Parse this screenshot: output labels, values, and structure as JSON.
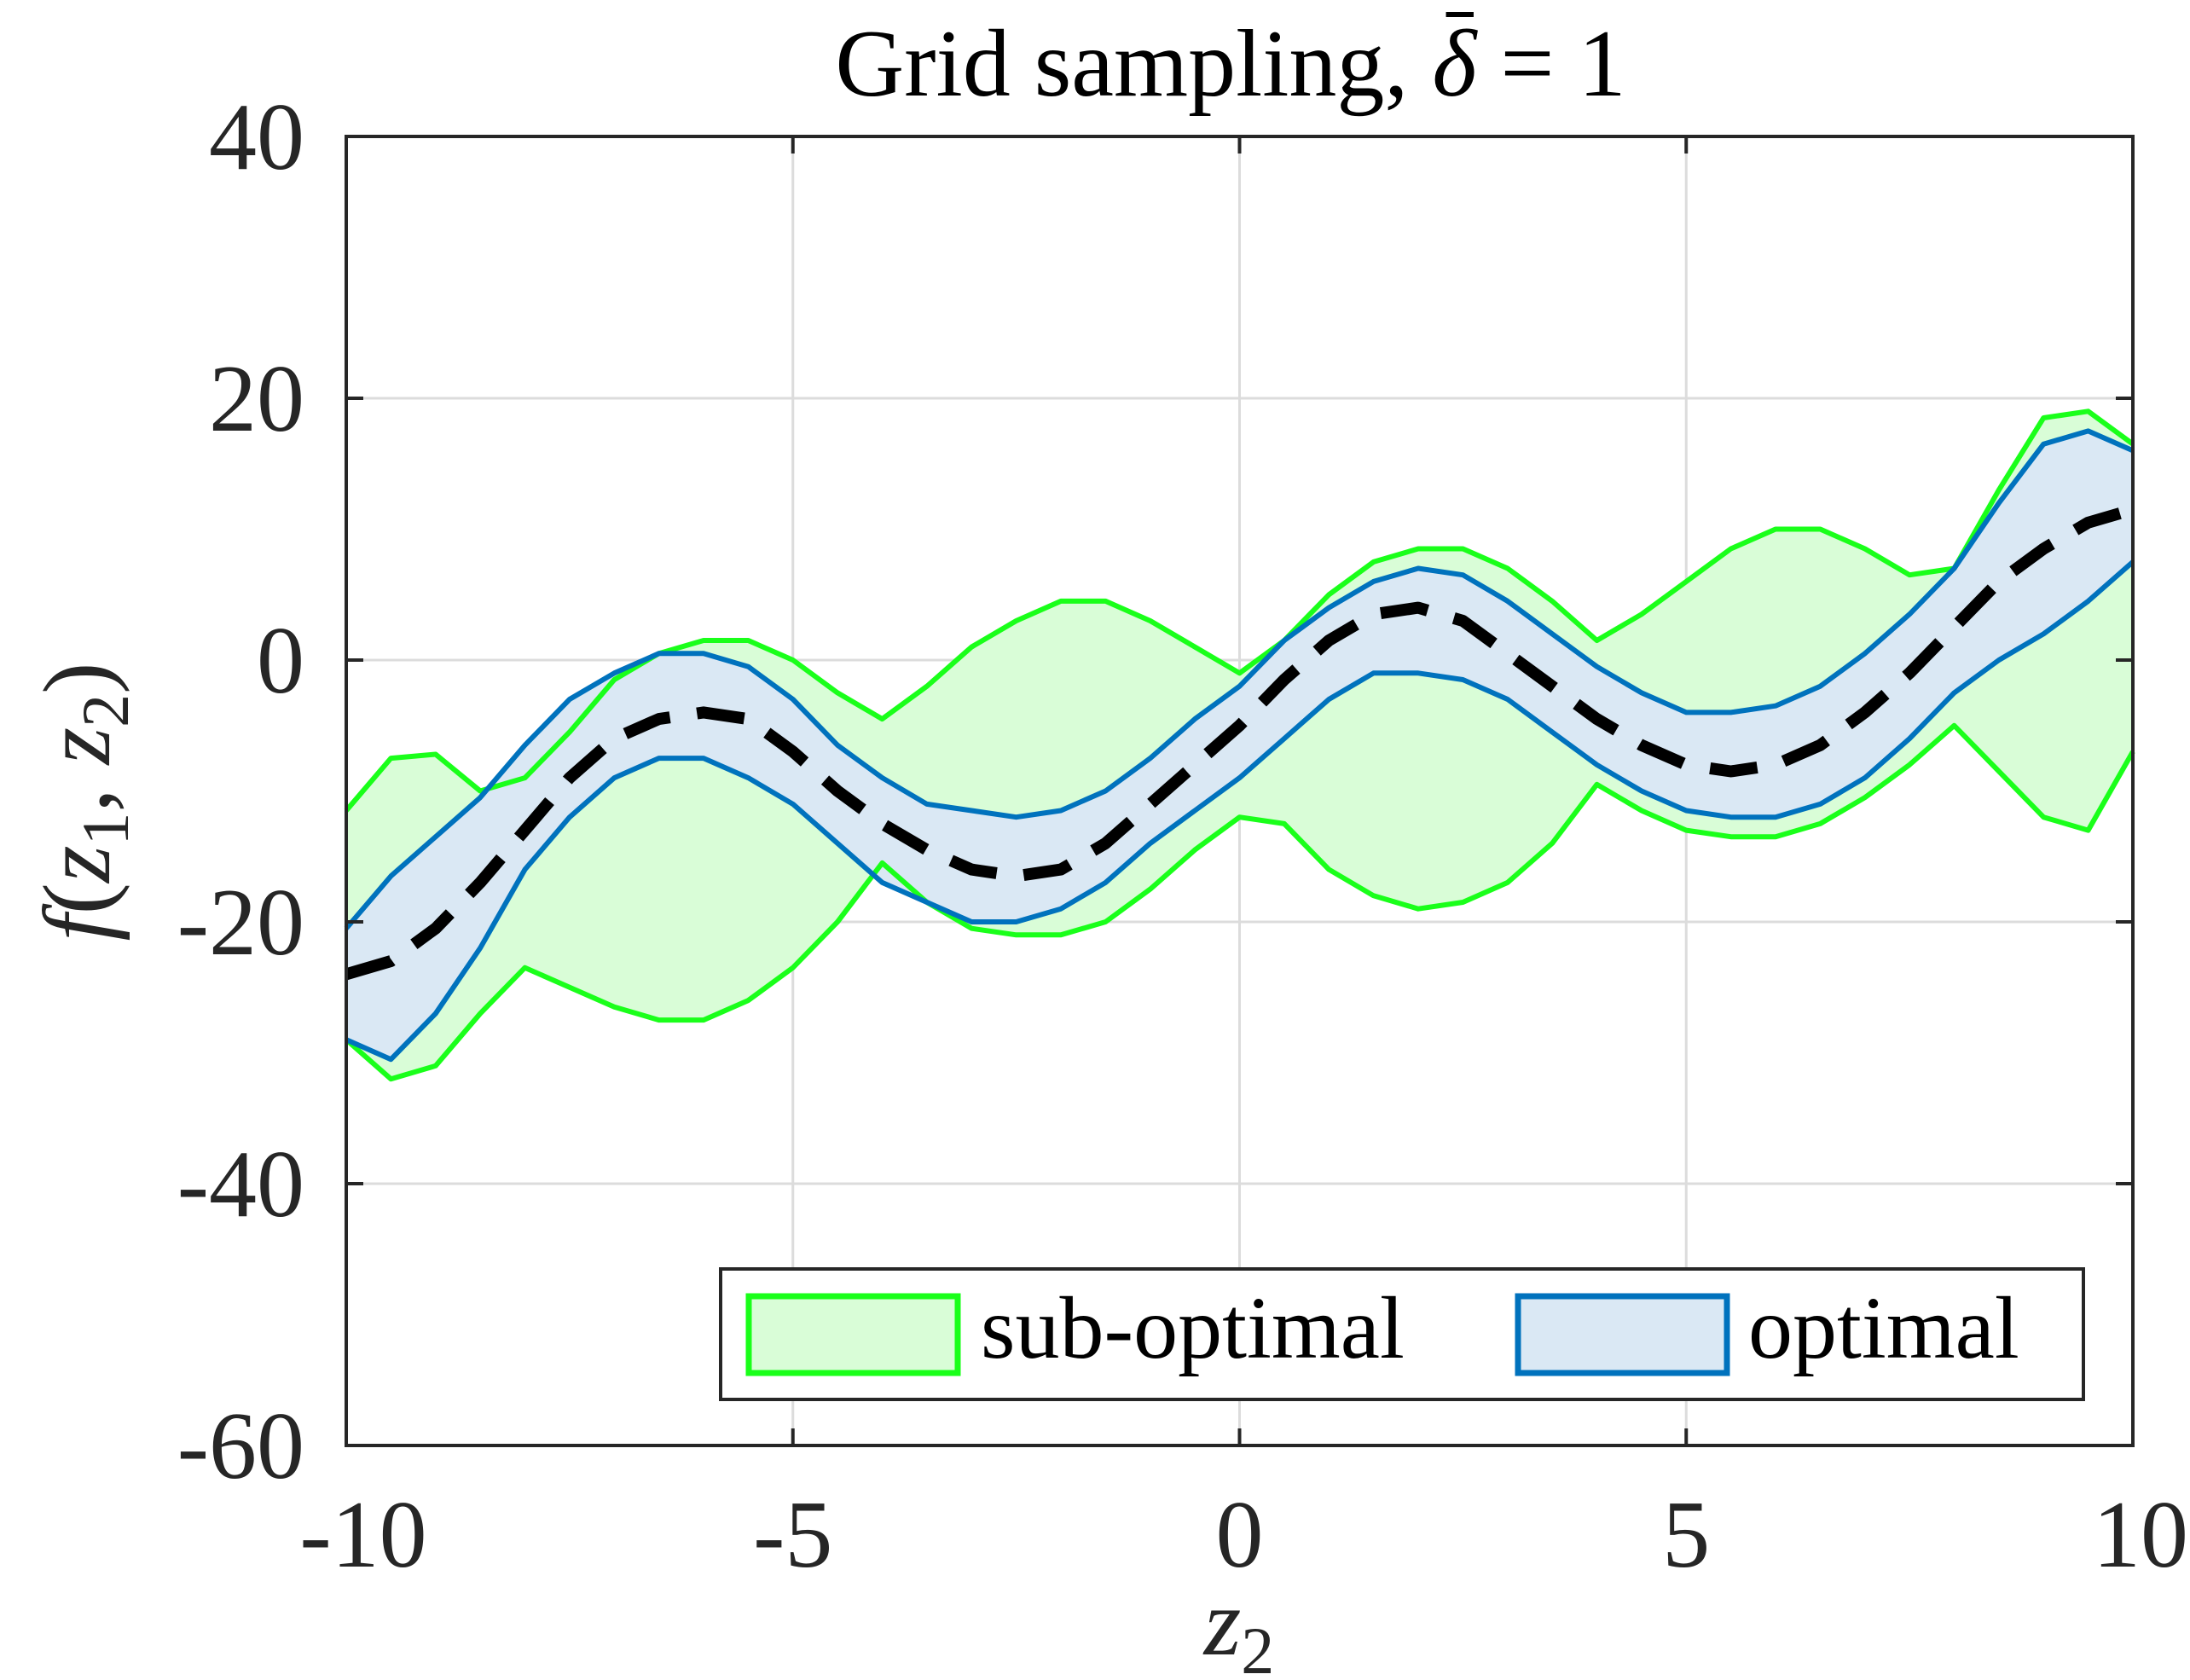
{
  "chart_data": {
    "type": "area",
    "title": "Grid sampling, δ̄ = 1",
    "title_parts": {
      "text": "Grid sampling, ",
      "symbol": "δ",
      "rest": " = 1"
    },
    "xlabel": {
      "var": "z",
      "sub": "2"
    },
    "ylabel": {
      "f": "f",
      "z": "z",
      "sub1": "1",
      "sub2": "2",
      "open": "(",
      "comma": ", ",
      "close": ")"
    },
    "xlim": [
      -10,
      10
    ],
    "ylim": [
      -60,
      40
    ],
    "x_ticks": [
      -10,
      -5,
      0,
      5,
      10
    ],
    "x_tick_labels": [
      "-10",
      "-5",
      "0",
      "5",
      "10"
    ],
    "y_ticks": [
      -60,
      -40,
      -20,
      0,
      20,
      40
    ],
    "y_tick_labels": [
      "-60",
      "-40",
      "-20",
      "0",
      "20",
      "40"
    ],
    "grid": true,
    "legend": {
      "location": "bottom-right",
      "entries": [
        "sub-optimal",
        "optimal"
      ]
    },
    "x": [
      -10,
      -9.5,
      -9,
      -8.5,
      -8,
      -7.5,
      -7,
      -6.5,
      -6,
      -5.5,
      -5,
      -4.5,
      -4,
      -3.5,
      -3,
      -2.5,
      -2,
      -1.5,
      -1,
      -0.5,
      0,
      0.5,
      1,
      1.5,
      2,
      2.5,
      3,
      3.5,
      4,
      4.5,
      5,
      5.5,
      6,
      6.5,
      7,
      7.5,
      8,
      8.5,
      9,
      9.5,
      10
    ],
    "series": [
      {
        "name": "sub-optimal",
        "kind": "band",
        "colors": {
          "fill": "#d9fdd7",
          "edge": "#1aff1a"
        },
        "upper": [
          -11.5,
          -7.5,
          -7.2,
          -10,
          -9,
          -5.5,
          -1.5,
          0.5,
          1.5,
          1.5,
          0,
          -2.5,
          -4.5,
          -2,
          1,
          3,
          4.5,
          4.5,
          3,
          1,
          -1,
          1.5,
          5,
          7.5,
          8.5,
          8.5,
          7,
          4.5,
          1.5,
          3.5,
          6,
          8.5,
          10,
          10,
          8.5,
          6.5,
          7,
          13,
          18.5,
          19,
          16.5
        ],
        "lower": [
          -29,
          -32,
          -31,
          -27,
          -23.5,
          -25,
          -26.5,
          -27.5,
          -27.5,
          -26,
          -23.5,
          -20,
          -15.5,
          -18.5,
          -20.5,
          -21,
          -21,
          -20,
          -17.5,
          -14.5,
          -12,
          -12.5,
          -16,
          -18,
          -19,
          -18.5,
          -17,
          -14,
          -9.5,
          -11.5,
          -13,
          -13.5,
          -13.5,
          -12.5,
          -10.5,
          -8,
          -5,
          -8.5,
          -12,
          -13,
          -7
        ]
      },
      {
        "name": "optimal",
        "kind": "band",
        "colors": {
          "fill": "#dae8f4",
          "edge": "#0072bd"
        },
        "upper": [
          -20.5,
          -16.5,
          -13.5,
          -10.5,
          -6.5,
          -3,
          -1,
          0.5,
          0.5,
          -0.5,
          -3,
          -6.5,
          -9,
          -11,
          -11.5,
          -12,
          -11.5,
          -10,
          -7.5,
          -4.5,
          -2,
          1.5,
          4,
          6,
          7,
          6.5,
          4.5,
          2,
          -0.5,
          -2.5,
          -4,
          -4,
          -3.5,
          -2,
          0.5,
          3.5,
          7,
          12,
          16.5,
          17.5,
          16
        ],
        "lower": [
          -29,
          -30.5,
          -27,
          -22,
          -16,
          -12,
          -9,
          -7.5,
          -7.5,
          -9,
          -11,
          -14,
          -17,
          -18.5,
          -20,
          -20,
          -19,
          -17,
          -14,
          -11.5,
          -9,
          -6,
          -3,
          -1,
          -1,
          -1.5,
          -3,
          -5.5,
          -8,
          -10,
          -11.5,
          -12,
          -12,
          -11,
          -9,
          -6,
          -2.5,
          0,
          2,
          4.5,
          7.5
        ]
      },
      {
        "name": "",
        "kind": "line",
        "style": "dashed",
        "colors": {
          "stroke": "#000000"
        },
        "values": [
          -24,
          -23,
          -20.5,
          -17,
          -13,
          -9,
          -6,
          -4.5,
          -4,
          -4.5,
          -7,
          -10,
          -12.5,
          -14.5,
          -16,
          -16.5,
          -16,
          -14,
          -11,
          -8,
          -5,
          -1.5,
          1.5,
          3.5,
          4,
          3,
          0.5,
          -2,
          -4.5,
          -6.5,
          -8,
          -8.5,
          -8,
          -6.5,
          -4,
          -1,
          2.5,
          6,
          8.5,
          10.5,
          11.5
        ]
      }
    ]
  }
}
